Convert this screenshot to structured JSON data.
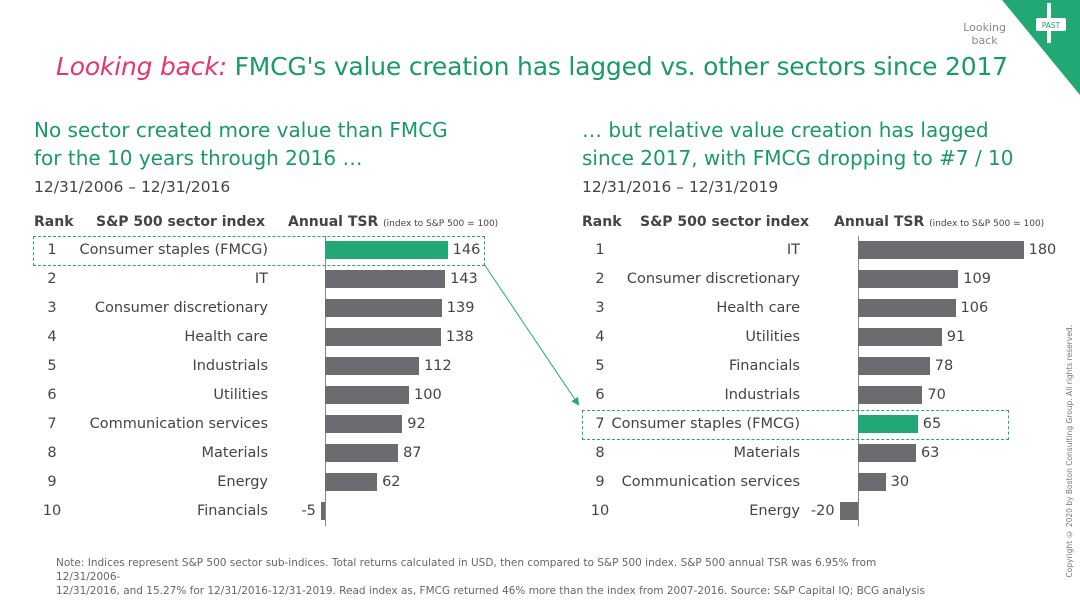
{
  "header": {
    "title_highlight": "Looking back:",
    "title_rest": " FMCG's value creation has lagged vs. other sectors since 2017",
    "looking_back_line1": "Looking",
    "looking_back_line2": "back",
    "corner_badge": "PAST"
  },
  "left_panel": {
    "subtitle_line1": "No sector created more value than FMCG",
    "subtitle_line2": "for the 10 years through 2016 …",
    "date_range": "12/31/2006 – 12/31/2016",
    "col_rank": "Rank",
    "col_sector": "S&P 500 sector index",
    "col_tsr": "Annual TSR",
    "col_tsr_note": "(index to S&P 500 = 100)"
  },
  "right_panel": {
    "subtitle_line1": "… but relative value creation has lagged",
    "subtitle_line2": "since 2017, with FMCG dropping to #7 / 10",
    "date_range": "12/31/2016 – 12/31/2019",
    "col_rank": "Rank",
    "col_sector": "S&P 500 sector index",
    "col_tsr": "Annual TSR",
    "col_tsr_note": "(index to S&P 500 = 100)"
  },
  "chart_data": [
    {
      "type": "bar",
      "orientation": "horizontal",
      "title": "12/31/2006 – 12/31/2016",
      "ranks": [
        "1",
        "2",
        "3",
        "4",
        "5",
        "6",
        "7",
        "8",
        "9",
        "10"
      ],
      "categories": [
        "Consumer staples (FMCG)",
        "IT",
        "Consumer discretionary",
        "Health care",
        "Industrials",
        "Utilities",
        "Communication services",
        "Materials",
        "Energy",
        "Financials"
      ],
      "values": [
        146,
        143,
        139,
        138,
        112,
        100,
        92,
        87,
        62,
        -5
      ],
      "value_labels": [
        "146",
        "143",
        "139",
        "138",
        "112",
        "100",
        "92",
        "87",
        "62",
        "-5"
      ],
      "highlight_index": 0,
      "highlight_color": "#22a875",
      "bar_color": "#6b6b70"
    },
    {
      "type": "bar",
      "orientation": "horizontal",
      "title": "12/31/2016 – 12/31/2019",
      "ranks": [
        "1",
        "2",
        "3",
        "4",
        "5",
        "6",
        "7",
        "8",
        "9",
        "10"
      ],
      "categories": [
        "IT",
        "Consumer discretionary",
        "Health care",
        "Utilities",
        "Financials",
        "Industrials",
        "Consumer staples (FMCG)",
        "Materials",
        "Communication services",
        "Energy"
      ],
      "values": [
        180,
        109,
        106,
        91,
        78,
        70,
        65,
        63,
        30,
        -20
      ],
      "value_labels": [
        "180",
        "109",
        "106",
        "91",
        "78",
        "70",
        "65",
        "63",
        "30",
        "-20"
      ],
      "highlight_index": 6,
      "highlight_color": "#22a875",
      "bar_color": "#6b6b70"
    }
  ],
  "footnote": {
    "line1": "Note: Indices represent S&P 500 sector sub-indices.  Total returns calculated in USD, then compared to S&P 500 index. S&P 500 annual TSR was 6.95% from 12/31/2006-",
    "line2": "12/31/2016, and 15.27% for 12/31/2016-12/31-2019. Read index as, FMCG returned 46% more than the index from 2007-2016.    Source: S&P Capital IQ; BCG analysis"
  },
  "copyright": "Copyright © 2020 by Boston Consulting Group. All rights reserved."
}
